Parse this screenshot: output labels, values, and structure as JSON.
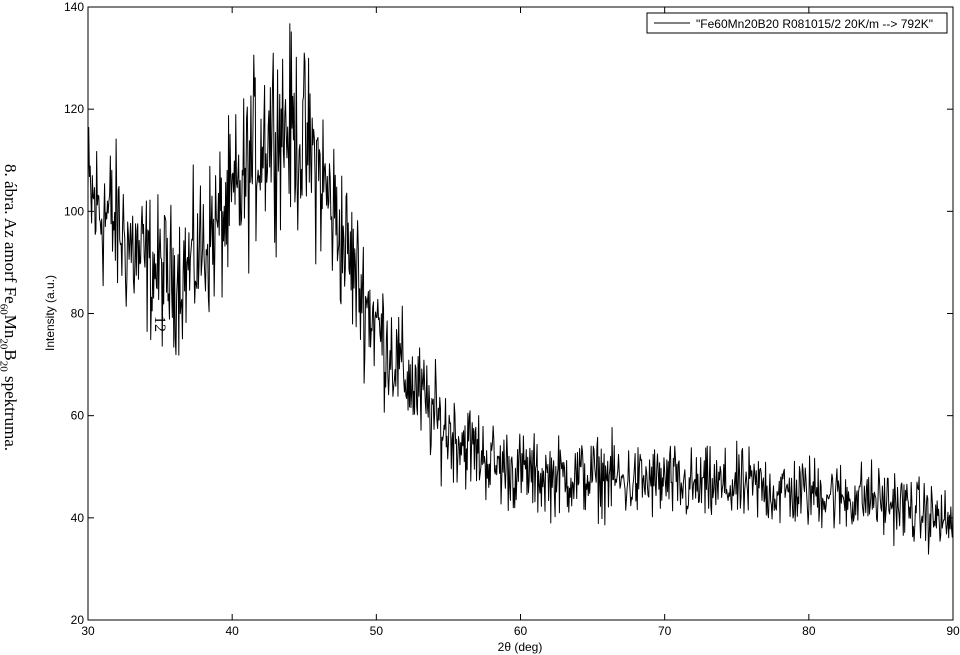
{
  "caption": {
    "prefix": "8. ábra. Az amorf Fe",
    "sub1": "60",
    "mid1": "Mn",
    "sub2": "20",
    "mid2": "B",
    "sub3": "20",
    "suffix": " spektruma."
  },
  "page_number": "12",
  "chart_data": {
    "type": "line",
    "xlabel": "2θ (deg)",
    "ylabel": "Intensity (a.u.)",
    "xlim": [
      30,
      90
    ],
    "ylim": [
      20,
      140
    ],
    "xticks": [
      30,
      40,
      50,
      60,
      70,
      80,
      90
    ],
    "yticks": [
      20,
      40,
      60,
      80,
      100,
      120,
      140
    ],
    "grid": false,
    "legend_position": "top-right",
    "line_color": "#000000",
    "series": [
      {
        "name": "\"Fe60Mn20B20 R081015/2 20K/m --> 792K\"",
        "x": [
          30.0,
          30.5,
          31.0,
          31.5,
          32.0,
          32.5,
          33.0,
          33.5,
          34.0,
          34.5,
          35.0,
          35.5,
          36.0,
          36.5,
          37.0,
          37.5,
          38.0,
          38.5,
          39.0,
          39.5,
          40.0,
          40.5,
          41.0,
          41.5,
          42.0,
          42.5,
          43.0,
          43.5,
          44.0,
          44.5,
          45.0,
          45.5,
          46.0,
          46.5,
          47.0,
          47.5,
          48.0,
          48.5,
          49.0,
          49.5,
          50.0,
          50.5,
          51.0,
          51.5,
          52.0,
          52.5,
          53.0,
          53.5,
          54.0,
          54.5,
          55.0,
          55.5,
          56.0,
          56.5,
          57.0,
          57.5,
          58.0,
          58.5,
          59.0,
          59.5,
          60.0,
          60.5,
          61.0,
          61.5,
          62.0,
          62.5,
          63.0,
          63.5,
          64.0,
          64.5,
          65.0,
          65.5,
          66.0,
          66.5,
          67.0,
          67.5,
          68.0,
          68.5,
          69.0,
          69.5,
          70.0,
          70.5,
          71.0,
          71.5,
          72.0,
          72.5,
          73.0,
          73.5,
          74.0,
          74.5,
          75.0,
          75.5,
          76.0,
          76.5,
          77.0,
          77.5,
          78.0,
          78.5,
          79.0,
          79.5,
          80.0,
          80.5,
          81.0,
          81.5,
          82.0,
          82.5,
          83.0,
          83.5,
          84.0,
          84.5,
          85.0,
          85.5,
          86.0,
          86.5,
          87.0,
          87.5,
          88.0,
          88.5,
          89.0,
          89.5,
          90.0
        ],
        "y": [
          103,
          101,
          100,
          99,
          97,
          95,
          93,
          91,
          90,
          89,
          88,
          87,
          87,
          88,
          89,
          91,
          93,
          95,
          97,
          99,
          101,
          104,
          107,
          111,
          114,
          116,
          117,
          117,
          116,
          115,
          113,
          111,
          108,
          104,
          100,
          96,
          92,
          88,
          84,
          81,
          78,
          75,
          73,
          70,
          68,
          66,
          64,
          62,
          60,
          58,
          57,
          56,
          55,
          54,
          53,
          52,
          51,
          50,
          50,
          49,
          49,
          49,
          48,
          48,
          48,
          48,
          48,
          48,
          48,
          48,
          48,
          48,
          48,
          48,
          47,
          47,
          47,
          47,
          47,
          47,
          47,
          47,
          46,
          46,
          46,
          46,
          46,
          46,
          46,
          46,
          46,
          46,
          46,
          46,
          46,
          45,
          45,
          45,
          45,
          45,
          45,
          45,
          45,
          45,
          44,
          44,
          44,
          44,
          44,
          44,
          43,
          43,
          43,
          42,
          42,
          41,
          41,
          40,
          40,
          39,
          39
        ]
      }
    ]
  }
}
